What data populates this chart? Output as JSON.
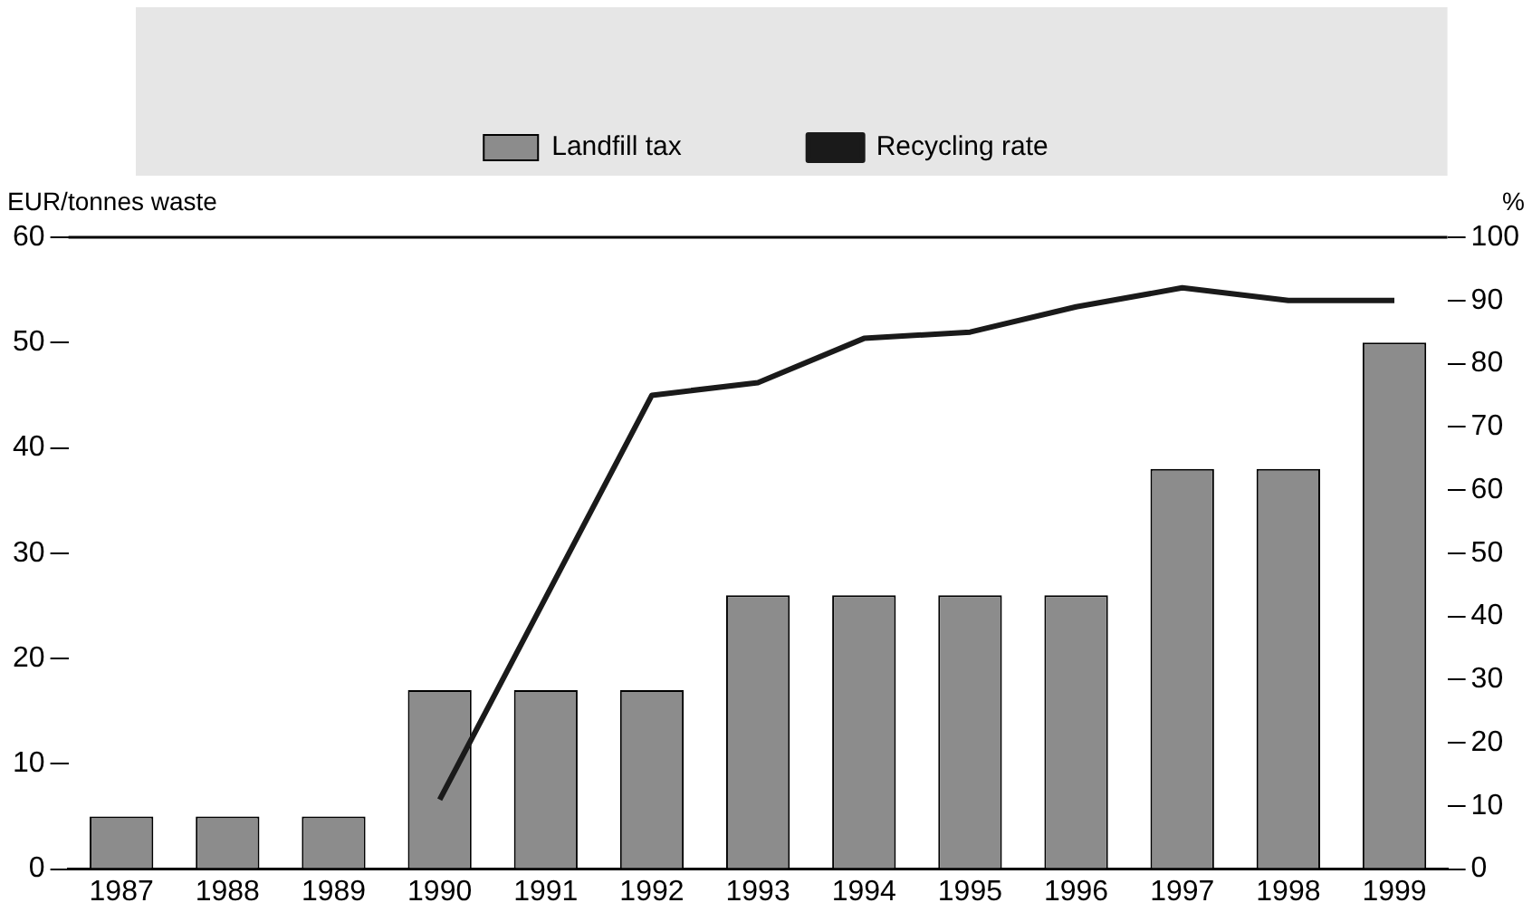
{
  "chart_data": {
    "type": "bar",
    "ylabel": "EUR/tonnes waste",
    "y2label": "%",
    "categories": [
      "1987",
      "1988",
      "1989",
      "1990",
      "1991",
      "1992",
      "1993",
      "1994",
      "1995",
      "1996",
      "1997",
      "1998",
      "1999"
    ],
    "series": [
      {
        "name": "Landfill tax",
        "color": "#8c8c8c",
        "values": [
          5,
          5,
          5,
          17,
          17,
          17,
          26,
          26,
          26,
          26,
          38,
          38,
          50
        ]
      },
      {
        "name": "Recycling rate",
        "type": "line",
        "axis": "y2",
        "color": "#1a1a1a",
        "values": [
          null,
          null,
          null,
          11,
          43,
          75,
          77,
          84,
          85,
          89,
          92,
          90,
          90
        ]
      }
    ],
    "ylim": [
      0,
      60
    ],
    "yticks": [
      0,
      10,
      20,
      30,
      40,
      50,
      60
    ],
    "y2lim": [
      0,
      100
    ],
    "y2ticks": [
      0,
      10,
      20,
      30,
      40,
      50,
      60,
      70,
      80,
      90,
      100
    ],
    "grid": false,
    "legend": "top",
    "marker": "none",
    "line_style": "solid"
  }
}
